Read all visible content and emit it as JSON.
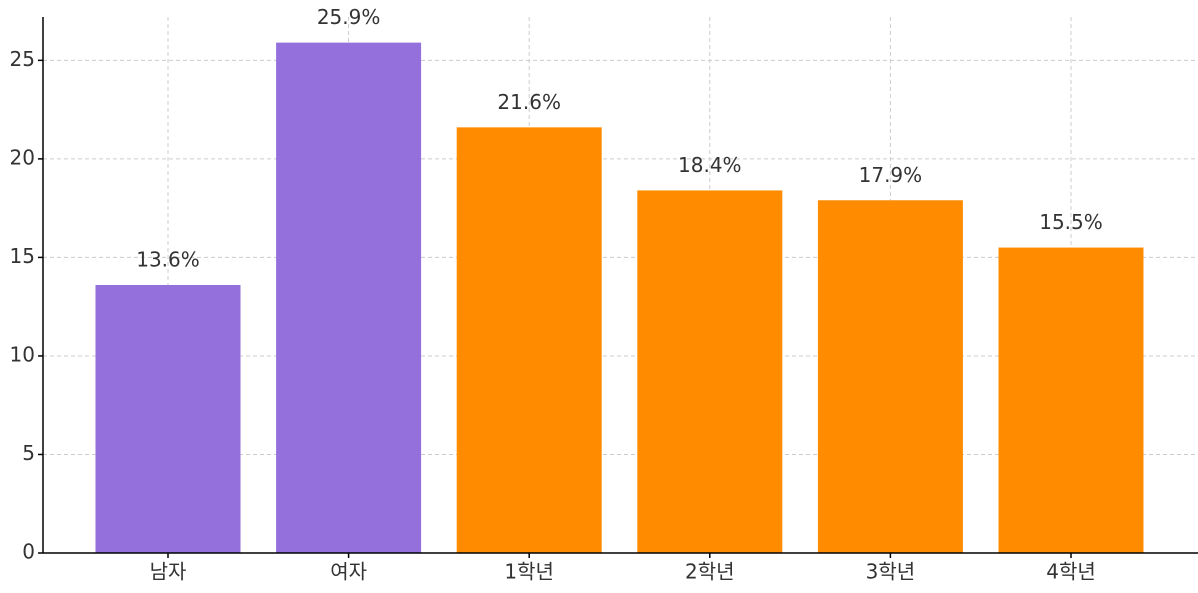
{
  "chart_data": {
    "type": "bar",
    "categories": [
      "남자",
      "여자",
      "1학년",
      "2학년",
      "3학년",
      "4학년"
    ],
    "values": [
      13.6,
      25.9,
      21.6,
      18.4,
      17.9,
      15.5
    ],
    "value_labels": [
      "13.6%",
      "25.9%",
      "21.6%",
      "18.4%",
      "17.9%",
      "15.5%"
    ],
    "colors": [
      "#9370db",
      "#9370db",
      "#ff8c00",
      "#ff8c00",
      "#ff8c00",
      "#ff8c00"
    ],
    "ylim": [
      0,
      27.2
    ],
    "yticks": [
      0,
      5,
      10,
      15,
      20,
      25
    ],
    "grid": true
  }
}
